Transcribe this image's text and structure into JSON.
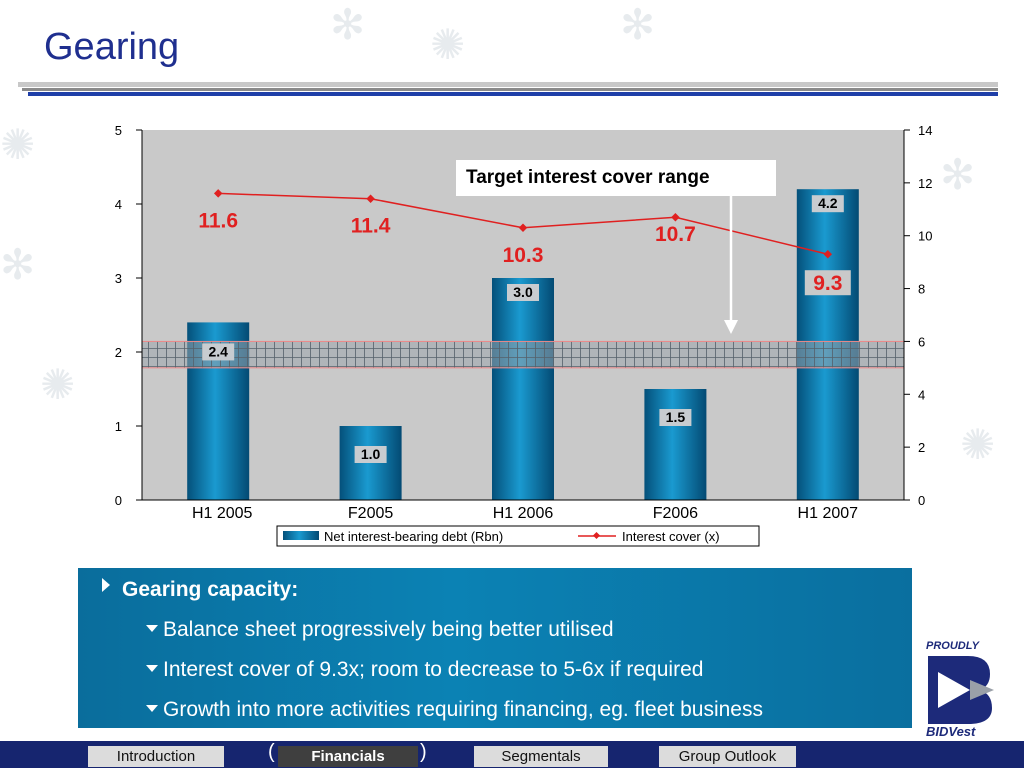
{
  "slide": {
    "title": "Gearing",
    "target_label": "Target interest cover range"
  },
  "chart_data": {
    "type": "bar",
    "categories": [
      "H1 2005",
      "F2005",
      "H1 2006",
      "F2006",
      "H1 2007"
    ],
    "series": [
      {
        "name": "Net interest-bearing debt (Rbn)",
        "type": "bar",
        "axis": "left",
        "values": [
          2.4,
          1.0,
          3.0,
          1.5,
          4.2
        ],
        "labels": [
          "2.4",
          "1.0",
          "3.0",
          "1.5",
          "4.2"
        ]
      },
      {
        "name": "Interest cover (x)",
        "type": "line",
        "axis": "right",
        "values": [
          11.6,
          11.4,
          10.3,
          10.7,
          9.3
        ],
        "labels": [
          "11.6",
          "11.4",
          "10.3",
          "10.7",
          "9.3"
        ]
      }
    ],
    "left_axis": {
      "ylim": [
        0,
        5
      ],
      "ticks": [
        "0",
        "1",
        "2",
        "3",
        "4",
        "5"
      ]
    },
    "right_axis": {
      "ylim": [
        0,
        14
      ],
      "ticks": [
        "0",
        "2",
        "4",
        "6",
        "8",
        "10",
        "12",
        "14"
      ]
    },
    "target_band": {
      "axis": "right",
      "range": [
        5,
        6
      ]
    },
    "grid": false,
    "legend": "bottom",
    "colors": {
      "bar": "#0a7fae",
      "line": "#e02020",
      "plot_bg": "#c9c9c9"
    }
  },
  "info_box": {
    "heading": "Gearing capacity:",
    "bullets": [
      "Balance sheet progressively being better utilised",
      "Interest cover of 9.3x; room to decrease to 5-6x if required",
      "Growth into more activities requiring financing, eg. fleet business"
    ]
  },
  "logo": {
    "top_text": "PROUDLY",
    "brand": "BIDVest"
  },
  "nav": {
    "tabs": [
      {
        "label": "Introduction",
        "active": false
      },
      {
        "label": "Financials",
        "active": true
      },
      {
        "label": "Segmentals",
        "active": false
      },
      {
        "label": "Group Outlook",
        "active": false
      }
    ]
  }
}
